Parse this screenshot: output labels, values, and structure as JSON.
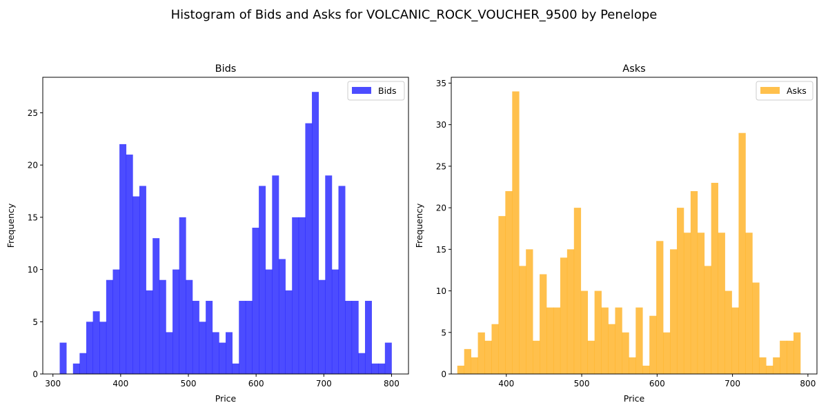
{
  "figure": {
    "suptitle": "Histogram of Bids and Asks for VOLCANIC_ROCK_VOUCHER_9500 by Penelope"
  },
  "chart_data": [
    {
      "type": "bar",
      "subtype": "histogram",
      "title": "Bids",
      "xlabel": "Price",
      "ylabel": "Frequency",
      "legend": "top-right",
      "legend_label": "Bids",
      "color": "#0000ff",
      "opacity": 0.7,
      "grid": false,
      "xlim": [
        285,
        825
      ],
      "ylim": [
        0,
        28.4
      ],
      "xticks": [
        300,
        400,
        500,
        600,
        700,
        800
      ],
      "yticks": [
        0,
        5,
        10,
        15,
        20,
        25
      ],
      "bin_start": 310,
      "bin_width": 9.8,
      "values": [
        3,
        0,
        1,
        2,
        5,
        6,
        5,
        9,
        10,
        22,
        21,
        17,
        18,
        8,
        13,
        9,
        4,
        10,
        15,
        9,
        7,
        5,
        7,
        4,
        3,
        4,
        1,
        7,
        7,
        14,
        18,
        10,
        19,
        11,
        8,
        15,
        15,
        24,
        27,
        9,
        19,
        10,
        18,
        7,
        7,
        2,
        7,
        1,
        1,
        3
      ]
    },
    {
      "type": "bar",
      "subtype": "histogram",
      "title": "Asks",
      "xlabel": "Price",
      "ylabel": "Frequency",
      "legend": "top-right",
      "legend_label": "Asks",
      "color": "#ffa500",
      "opacity": 0.7,
      "grid": false,
      "xlim": [
        327,
        812
      ],
      "ylim": [
        0,
        35.7
      ],
      "xticks": [
        400,
        500,
        600,
        700,
        800
      ],
      "yticks": [
        0,
        5,
        10,
        15,
        20,
        25,
        30,
        35
      ],
      "bin_start": 335,
      "bin_width": 9.1,
      "values": [
        1,
        3,
        2,
        5,
        4,
        6,
        19,
        22,
        34,
        13,
        15,
        4,
        12,
        8,
        8,
        14,
        15,
        20,
        10,
        4,
        10,
        8,
        6,
        8,
        5,
        2,
        8,
        1,
        7,
        16,
        5,
        15,
        20,
        17,
        22,
        17,
        13,
        23,
        17,
        10,
        8,
        29,
        17,
        11,
        2,
        1,
        2,
        4,
        4,
        5
      ]
    }
  ]
}
